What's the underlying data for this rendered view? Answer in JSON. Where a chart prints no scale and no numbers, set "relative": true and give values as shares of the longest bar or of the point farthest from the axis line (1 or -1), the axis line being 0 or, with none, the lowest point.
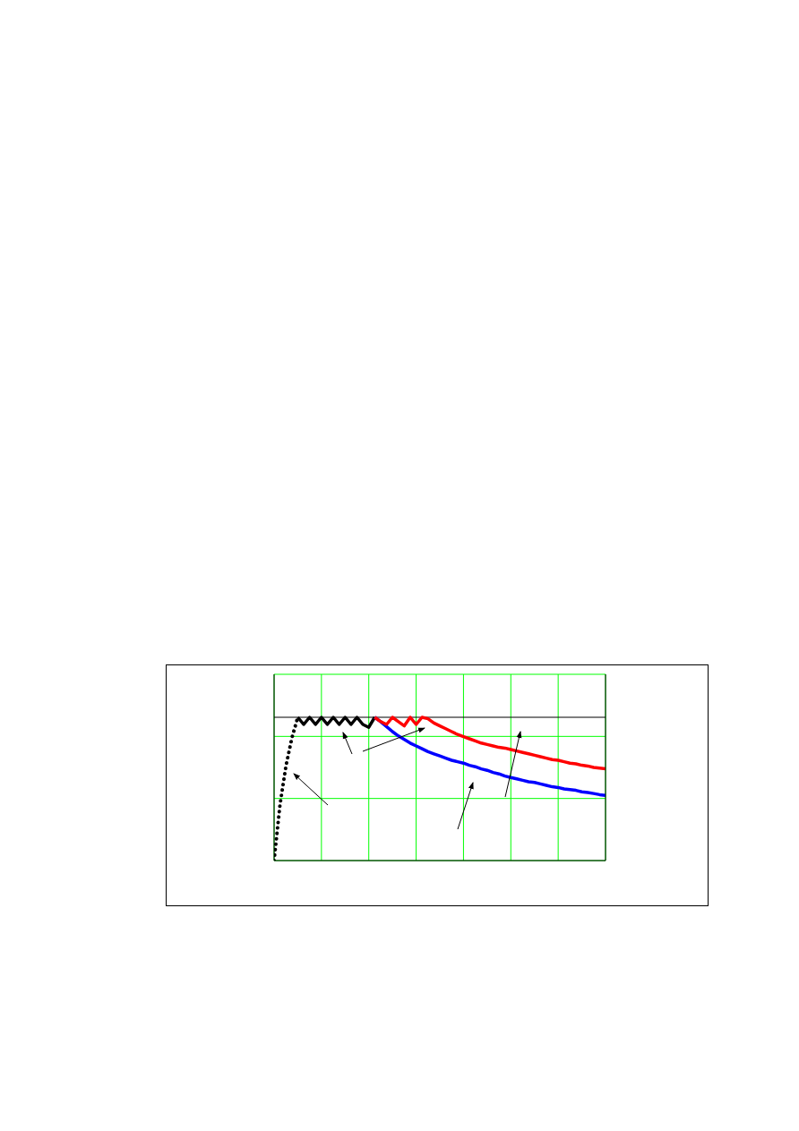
{
  "chart_data": {
    "type": "line",
    "relative": true,
    "grid": true,
    "tick_labels": false,
    "marker": "none",
    "categories": [
      null,
      null,
      null,
      null,
      null,
      null,
      null,
      null,
      null,
      null,
      null,
      null,
      null,
      null,
      null,
      null,
      null,
      null,
      null,
      null,
      null,
      null,
      null,
      null,
      null,
      null,
      null,
      null,
      null,
      null,
      null,
      null,
      null,
      null,
      null,
      null,
      null,
      null,
      null,
      null,
      null,
      null,
      null,
      null,
      null,
      null,
      null,
      null,
      null,
      null,
      null,
      null,
      null,
      null,
      null,
      null,
      null
    ],
    "ref_lines": [
      {
        "axis": "y",
        "value": 1,
        "color": "#000000",
        "line_style": "solid"
      }
    ],
    "series": [
      {
        "color": "#000000",
        "line_style": "dotted",
        "values": [
          0,
          0.39,
          0.66,
          0.855,
          1,
          null,
          null,
          null,
          null,
          null,
          null,
          null,
          null,
          null,
          null,
          null,
          null,
          null,
          null,
          null,
          null,
          null,
          null,
          null,
          null,
          null,
          null,
          null,
          null,
          null,
          null,
          null,
          null,
          null,
          null,
          null,
          null,
          null,
          null,
          null,
          null,
          null,
          null,
          null,
          null,
          null,
          null,
          null,
          null,
          null,
          null,
          null,
          null,
          null,
          null,
          null,
          null
        ]
      },
      {
        "color": "#000000",
        "line_style": "solid",
        "values": [
          null,
          null,
          null,
          null,
          1,
          0.95,
          1,
          0.95,
          1,
          0.95,
          1,
          0.95,
          1,
          0.95,
          1,
          0.95,
          0.93,
          1,
          null,
          null,
          null,
          null,
          null,
          null,
          null,
          null,
          null,
          null,
          null,
          null,
          null,
          null,
          null,
          null,
          null,
          null,
          null,
          null,
          null,
          null,
          null,
          null,
          null,
          null,
          null,
          null,
          null,
          null,
          null,
          null,
          null,
          null,
          null,
          null,
          null,
          null,
          null
        ]
      },
      {
        "color": "#0000ff",
        "line_style": "solid",
        "values": [
          null,
          null,
          null,
          null,
          null,
          null,
          null,
          null,
          null,
          null,
          null,
          null,
          null,
          null,
          null,
          null,
          null,
          1,
          0.97,
          0.935,
          0.9,
          0.87,
          0.845,
          0.82,
          0.8,
          0.78,
          0.76,
          0.745,
          0.73,
          0.715,
          0.7,
          0.69,
          0.68,
          0.665,
          0.655,
          0.64,
          0.63,
          0.615,
          0.605,
          0.59,
          0.58,
          0.57,
          0.56,
          0.55,
          0.545,
          0.535,
          0.525,
          0.515,
          0.51,
          0.5,
          0.495,
          0.49,
          0.48,
          0.475,
          0.468,
          0.46,
          0.455
        ]
      },
      {
        "color": "#ff0000",
        "line_style": "solid",
        "values": [
          null,
          null,
          null,
          null,
          null,
          null,
          null,
          null,
          null,
          null,
          null,
          null,
          null,
          null,
          null,
          null,
          null,
          1,
          0.97,
          0.95,
          1,
          0.97,
          0.94,
          1,
          0.95,
          1,
          0.99,
          0.96,
          0.94,
          0.92,
          0.9,
          0.88,
          0.865,
          0.85,
          0.835,
          0.82,
          0.81,
          0.8,
          0.79,
          0.785,
          0.775,
          0.765,
          0.755,
          0.745,
          0.735,
          0.725,
          0.715,
          0.705,
          0.7,
          0.69,
          0.68,
          0.675,
          0.665,
          0.66,
          0.65,
          0.645,
          0.64
        ]
      }
    ]
  }
}
